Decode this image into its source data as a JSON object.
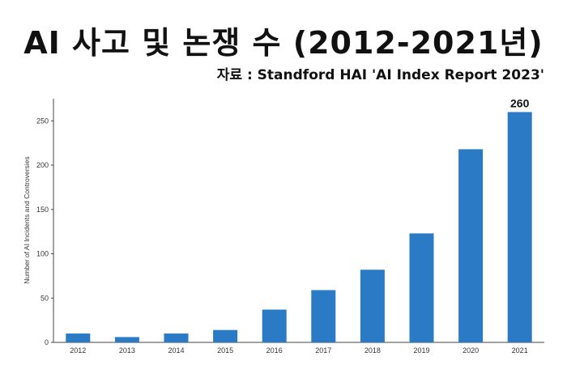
{
  "title": "AI 사고 및 논쟁 수 (2012-2021년)",
  "source": "자료 : Standford HAI 'AI Index Report 2023'",
  "chart_data": {
    "type": "bar",
    "ylabel": "Number of AI Incidents and Controversies",
    "xlabel": "",
    "categories": [
      "2012",
      "2013",
      "2014",
      "2015",
      "2016",
      "2017",
      "2018",
      "2019",
      "2020",
      "2021"
    ],
    "values": [
      10,
      6,
      10,
      14,
      37,
      59,
      82,
      123,
      218,
      260
    ],
    "ylim": [
      0,
      275
    ],
    "yticks": [
      0,
      50,
      100,
      150,
      200,
      250
    ],
    "bar_color": "#2b7ac5",
    "data_labels": [
      {
        "index": 9,
        "text": "260"
      }
    ],
    "grid": false
  }
}
